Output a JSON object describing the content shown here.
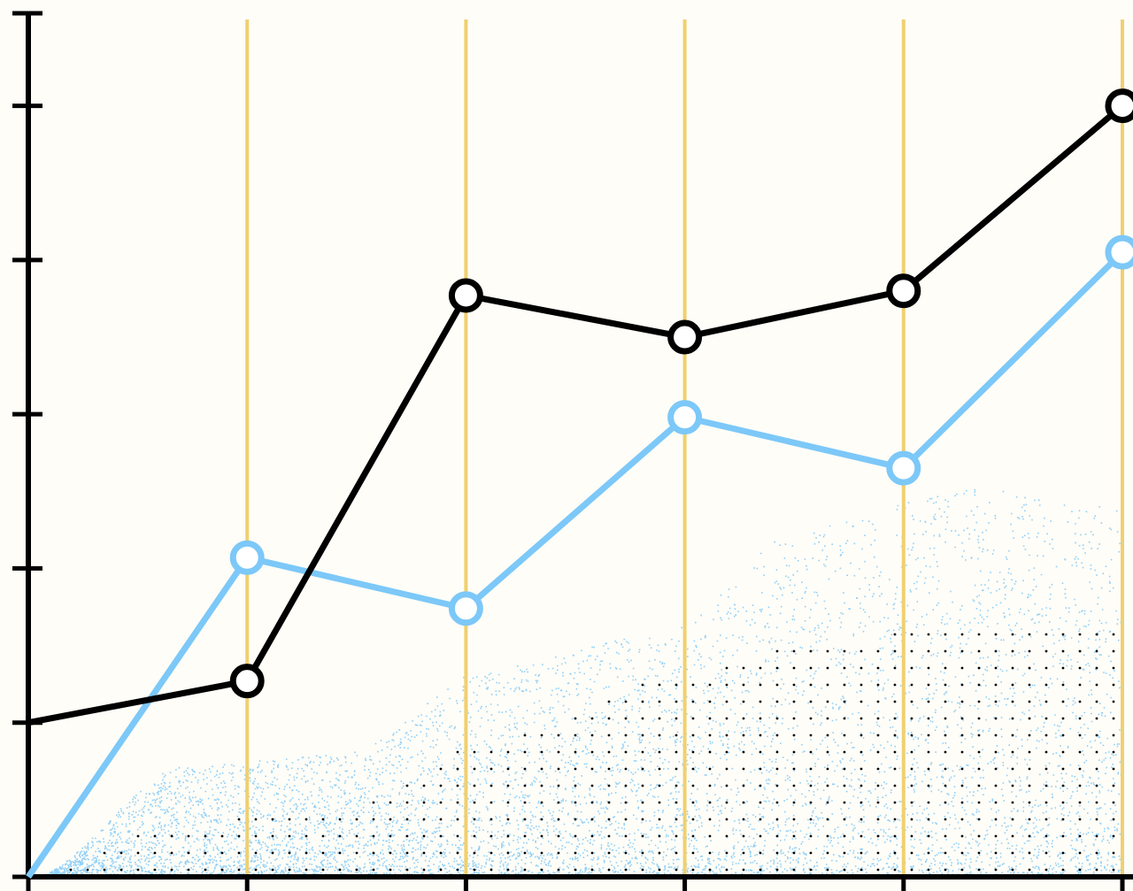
{
  "colors": {
    "background": "#fefdf8",
    "axis": "#000000",
    "gridline": "#f0d070",
    "series_black": "#000000",
    "series_blue": "#7cc8f8",
    "marker_fill": "#ffffff"
  },
  "chart_data": {
    "type": "line",
    "title": "",
    "xlabel": "",
    "ylabel": "",
    "x": [
      0,
      1,
      2,
      3,
      4,
      5
    ],
    "xlim": [
      0,
      5
    ],
    "ylim": [
      0,
      5.6
    ],
    "y_ticks": [
      0,
      1,
      2,
      3,
      4,
      5
    ],
    "grid": "vertical",
    "tick_labels_shown": false,
    "legend": "none",
    "series": [
      {
        "color": "#000000",
        "values": [
          1.0,
          1.27,
          3.77,
          3.5,
          3.8,
          5.0
        ],
        "markers_from_index": 1
      },
      {
        "color": "#7cc8f8",
        "values": [
          0.0,
          2.07,
          1.74,
          2.98,
          2.65,
          4.05
        ],
        "markers_from_index": 1
      }
    ],
    "area_blue_profile": [
      0.0,
      0.72,
      0.8,
      1.37,
      1.57,
      2.27,
      2.53,
      2.4
    ],
    "area_dot_profile": [
      0.0,
      0.35,
      0.45,
      0.9,
      1.25,
      1.5,
      1.65,
      1.58
    ]
  }
}
